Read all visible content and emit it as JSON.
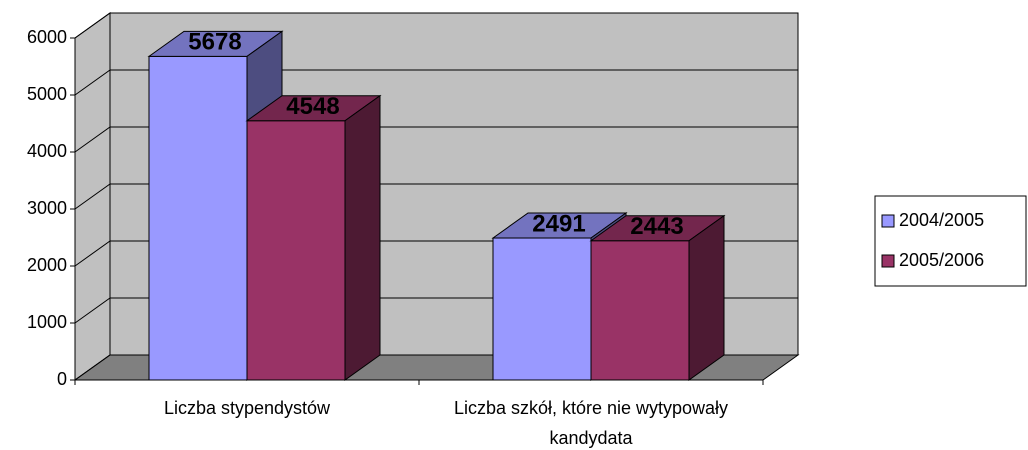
{
  "chart_data": {
    "type": "bar3d",
    "categories": [
      "Liczba stypendystów",
      "Liczba szkół, które nie wytypowały kandydata"
    ],
    "series": [
      {
        "name": "2004/2005",
        "color": "#9999ff",
        "values": [
          5678,
          2491
        ]
      },
      {
        "name": "2005/2006",
        "color": "#993366",
        "values": [
          4548,
          2443
        ]
      }
    ],
    "ylim": [
      0,
      6000
    ],
    "yticks": [
      0,
      1000,
      2000,
      3000,
      4000,
      5000,
      6000
    ],
    "grid": true,
    "legend": "right"
  }
}
